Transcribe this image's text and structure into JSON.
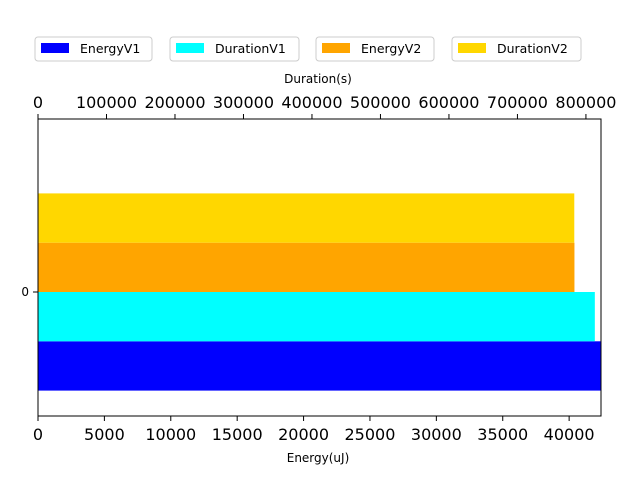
{
  "chart_data": {
    "type": "bar",
    "orientation": "horizontal",
    "categories": [
      "0"
    ],
    "series": [
      {
        "name": "EnergyV1",
        "axis": "bottom",
        "values": [
          42800
        ],
        "color": "#0000ff"
      },
      {
        "name": "DurationV1",
        "axis": "top",
        "values": [
          813000
        ],
        "color": "#00ffff"
      },
      {
        "name": "EnergyV2",
        "axis": "bottom",
        "values": [
          40400
        ],
        "color": "#ffa500"
      },
      {
        "name": "DurationV2",
        "axis": "top",
        "values": [
          783000
        ],
        "color": "#ffd700"
      }
    ],
    "bottom_axis": {
      "label": "Energy(uJ)",
      "range": [
        0,
        42400
      ],
      "ticks": [
        {
          "value": 0,
          "label": "0"
        },
        {
          "value": 5000,
          "label": "5000"
        },
        {
          "value": 10000,
          "label": "10000"
        },
        {
          "value": 15000,
          "label": "15000"
        },
        {
          "value": 20000,
          "label": "20000"
        },
        {
          "value": 25000,
          "label": "25000"
        },
        {
          "value": 30000,
          "label": "30000"
        },
        {
          "value": 35000,
          "label": "35000"
        },
        {
          "value": 40000,
          "label": "40000"
        }
      ]
    },
    "top_axis": {
      "label": "Duration(s)",
      "range": [
        0,
        822000
      ],
      "ticks": [
        {
          "value": 0,
          "label": "0"
        },
        {
          "value": 100000,
          "label": "100000"
        },
        {
          "value": 200000,
          "label": "200000"
        },
        {
          "value": 300000,
          "label": "300000"
        },
        {
          "value": 400000,
          "label": "400000"
        },
        {
          "value": 500000,
          "label": "500000"
        },
        {
          "value": 600000,
          "label": "600000"
        },
        {
          "value": 700000,
          "label": "700000"
        },
        {
          "value": 800000,
          "label": "800000"
        }
      ]
    },
    "legend": {
      "placement": "top",
      "entries": [
        "EnergyV1",
        "DurationV1",
        "EnergyV2",
        "DurationV2"
      ]
    },
    "grid": false
  }
}
